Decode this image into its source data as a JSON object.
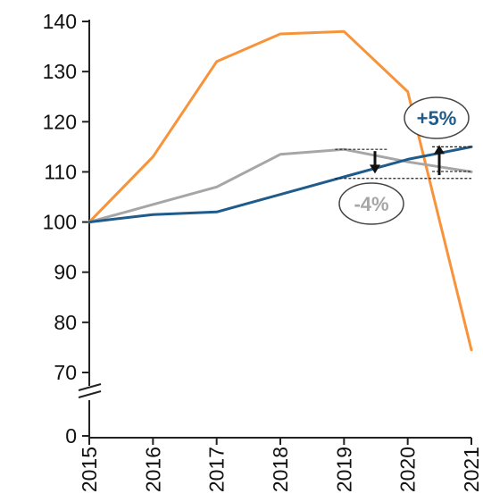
{
  "chart_data": {
    "type": "line",
    "title": "",
    "xlabel": "",
    "ylabel": "",
    "x": [
      2015,
      2016,
      2017,
      2018,
      2019,
      2020,
      2021
    ],
    "x_tick_labels": [
      "2015",
      "2016",
      "2017",
      "2018",
      "2019",
      "2020",
      "2021"
    ],
    "y_tick_labels": [
      "140",
      "130",
      "120",
      "110",
      "100",
      "90",
      "80",
      "70",
      "0"
    ],
    "ylim": [
      70,
      140
    ],
    "y_axis_break": "between 70 and 0",
    "grid": false,
    "legend": "none",
    "series": [
      {
        "color": "#f7943b",
        "values": [
          100,
          113,
          132,
          137.5,
          138,
          126,
          74.5
        ]
      },
      {
        "color": "#a6a6a6",
        "values": [
          100,
          103.5,
          107,
          113.5,
          114.5,
          112,
          110
        ]
      },
      {
        "color": "#1f5c8b",
        "values": [
          100,
          101.5,
          102,
          105.5,
          109,
          112.5,
          115
        ]
      }
    ],
    "annotations": [
      {
        "text": "-4%",
        "color": "#a6a6a6",
        "series_color": "#a6a6a6",
        "from_value": 114.5,
        "to_value": 110,
        "direction": "down"
      },
      {
        "text": "+5%",
        "color": "#1f5c8b",
        "series_color": "#1f5c8b",
        "from_value": 109,
        "to_value": 115,
        "direction": "up"
      }
    ]
  }
}
